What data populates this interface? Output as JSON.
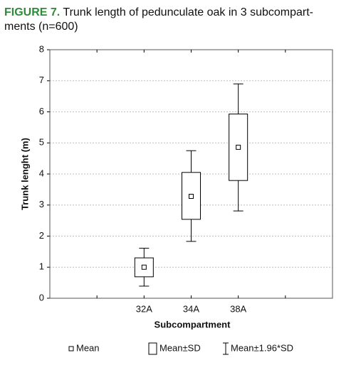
{
  "chart_data": {
    "type": "box",
    "figure_label": "FIGURE 7.",
    "title": [
      "Trunk length of pedunculate oak in 3 subcompart-",
      "ments (n=600)"
    ],
    "xlabel": "Subcompartment",
    "ylabel": "Trunk lenght (m)",
    "categories": [
      null,
      "32A",
      "34A",
      "38A",
      null
    ],
    "mean": [
      null,
      1.0,
      3.28,
      4.86,
      null
    ],
    "sd_low": [
      null,
      0.69,
      2.54,
      3.79,
      null
    ],
    "sd_high": [
      null,
      1.3,
      4.05,
      5.93,
      null
    ],
    "ci_low": [
      null,
      0.39,
      1.83,
      2.81,
      null
    ],
    "ci_high": [
      null,
      1.61,
      4.75,
      6.9,
      null
    ],
    "ylim": [
      0,
      8
    ],
    "yticks": [
      0,
      1,
      2,
      3,
      4,
      5,
      6,
      7,
      8
    ],
    "grid": true,
    "legend": [
      "Mean",
      "Mean±SD",
      "Mean±1.96*SD"
    ],
    "title_color": "#2e8b3a",
    "color": "#000000"
  }
}
